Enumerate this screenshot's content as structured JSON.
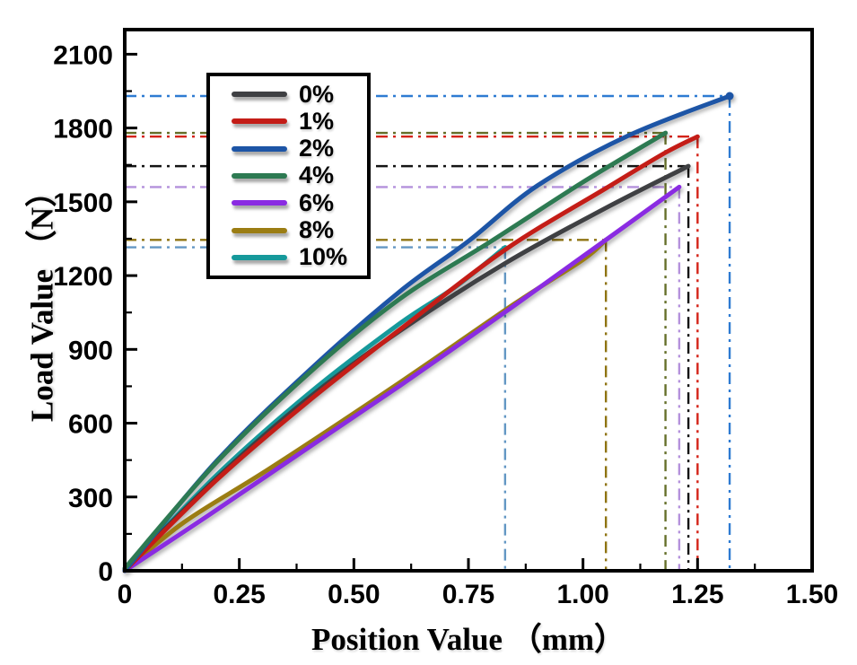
{
  "chart_data": {
    "type": "line",
    "title": "",
    "xlabel": "Position Value （mm）",
    "ylabel": "Load Value （N）",
    "xlim": [
      0,
      1.5
    ],
    "ylim": [
      0,
      2200
    ],
    "grid": false,
    "legend_position": "upper-left-inside",
    "x_ticks": [
      "0",
      "0.25",
      "0.50",
      "0.75",
      "1.00",
      "1.25",
      "1.50"
    ],
    "x_tick_values": [
      0,
      0.25,
      0.5,
      0.75,
      1.0,
      1.25,
      1.5
    ],
    "y_ticks": [
      "0",
      "300",
      "600",
      "900",
      "1200",
      "1500",
      "1800",
      "2100"
    ],
    "y_tick_values": [
      0,
      300,
      600,
      900,
      1200,
      1500,
      1800,
      2100
    ],
    "x_minor_step": 0.125,
    "y_minor_step": 150,
    "axis_color": "#000000",
    "background_color": "#ffffff",
    "guide_line_style": "dash-dot",
    "series": [
      {
        "name": "0%",
        "color": "#3f4043",
        "guide_color": "#141414",
        "failure_point": {
          "x": 1.23,
          "load": 1645
        },
        "points": [
          [
            0,
            5
          ],
          [
            0.2,
            375
          ],
          [
            0.4,
            700
          ],
          [
            0.6,
            975
          ],
          [
            0.83,
            1250
          ],
          [
            1.05,
            1475
          ],
          [
            1.23,
            1645
          ]
        ]
      },
      {
        "name": "1%",
        "color": "#c41d17",
        "guide_color": "#d42318",
        "failure_point": {
          "x": 1.25,
          "load": 1765
        },
        "points": [
          [
            0,
            0
          ],
          [
            0.2,
            368
          ],
          [
            0.4,
            688
          ],
          [
            0.6,
            980
          ],
          [
            0.83,
            1305
          ],
          [
            1.05,
            1555
          ],
          [
            1.18,
            1700
          ],
          [
            1.25,
            1765
          ]
        ]
      },
      {
        "name": "2%",
        "color": "#1d55a6",
        "guide_color": "#2e7bd2",
        "failure_point": {
          "x": 1.32,
          "load": 1930
        },
        "end_marker": true,
        "points": [
          [
            0,
            0
          ],
          [
            0.2,
            445
          ],
          [
            0.4,
            810
          ],
          [
            0.6,
            1135
          ],
          [
            0.75,
            1340
          ],
          [
            0.9,
            1565
          ],
          [
            1.1,
            1770
          ],
          [
            1.32,
            1930
          ]
        ]
      },
      {
        "name": "4%",
        "color": "#2d7a52",
        "guide_color": "#66702b",
        "failure_point": {
          "x": 1.18,
          "load": 1780
        },
        "points": [
          [
            0,
            10
          ],
          [
            0.2,
            440
          ],
          [
            0.4,
            800
          ],
          [
            0.6,
            1105
          ],
          [
            0.8,
            1340
          ],
          [
            1.0,
            1580
          ],
          [
            1.18,
            1780
          ]
        ]
      },
      {
        "name": "6%",
        "color": "#8a2be2",
        "guide_color": "#b491dc",
        "failure_point": {
          "x": 1.21,
          "load": 1560
        },
        "points": [
          [
            0,
            0
          ],
          [
            0.18,
            222
          ],
          [
            0.37,
            462
          ],
          [
            0.6,
            752
          ],
          [
            0.85,
            1078
          ],
          [
            1.05,
            1345
          ],
          [
            1.21,
            1560
          ]
        ]
      },
      {
        "name": "8%",
        "color": "#9b7d13",
        "guide_color": "#8f7413",
        "failure_point": {
          "x": 1.05,
          "load": 1345
        },
        "points": [
          [
            0,
            0
          ],
          [
            0.13,
            198
          ],
          [
            0.32,
            420
          ],
          [
            0.6,
            765
          ],
          [
            0.85,
            1085
          ],
          [
            1.0,
            1265
          ],
          [
            1.05,
            1345
          ]
        ]
      },
      {
        "name": "10%",
        "color": "#16999b",
        "guide_color": "#6397c4",
        "failure_point": {
          "x": 0.83,
          "load": 1315
        },
        "points": [
          [
            0,
            0
          ],
          [
            0.2,
            388
          ],
          [
            0.4,
            718
          ],
          [
            0.6,
            1005
          ],
          [
            0.72,
            1152
          ],
          [
            0.83,
            1315
          ]
        ]
      }
    ]
  }
}
